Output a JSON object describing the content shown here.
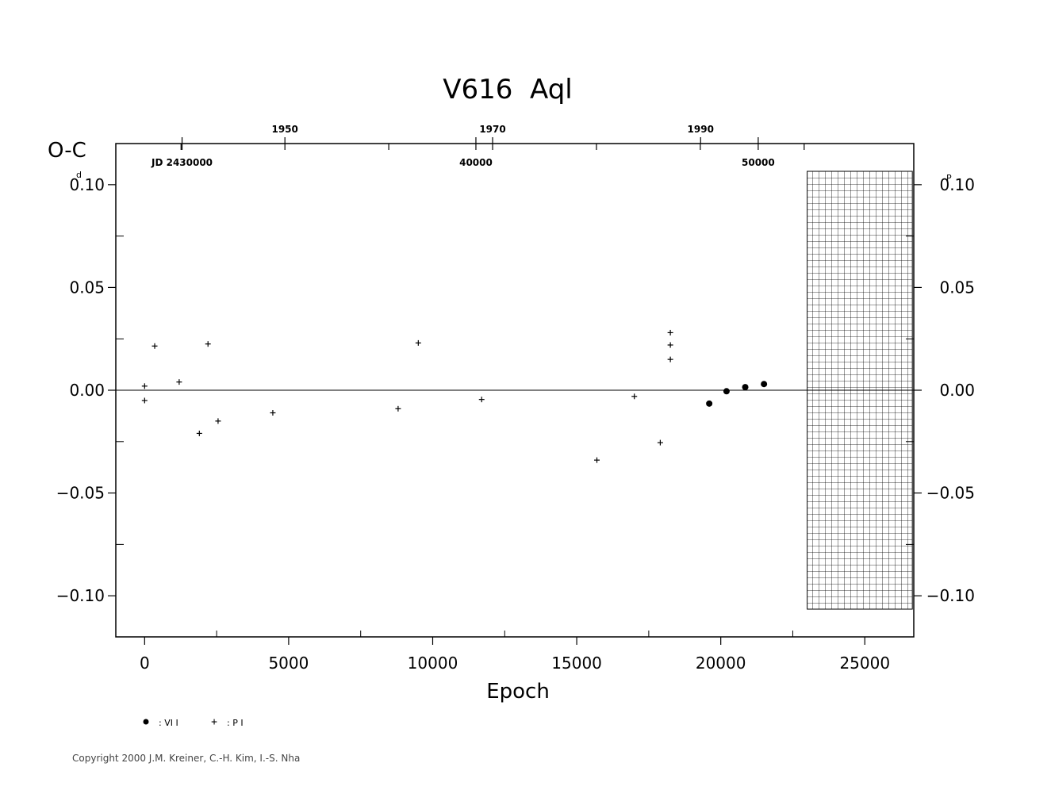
{
  "chart_data": {
    "type": "scatter",
    "title": "V616  Aql",
    "xlabel": "Epoch",
    "ylabel": "O-C",
    "y_unit_left": "d",
    "y_unit_right": "P",
    "xlim": [
      -1000,
      26700
    ],
    "ylim": [
      -0.12,
      0.12
    ],
    "x_ticks": [
      "0",
      "5000",
      "10000",
      "15000",
      "20000",
      "25000"
    ],
    "y_ticks": [
      "0.10",
      "0.05",
      "0.00",
      "−0.05",
      "−0.10"
    ],
    "top_year_ticks": [
      {
        "label": "1950",
        "epoch": 4870
      },
      {
        "label": "1970",
        "epoch": 12080
      },
      {
        "label": "1990",
        "epoch": 19300
      }
    ],
    "jd_ticks": [
      {
        "label": "JD  2430000",
        "epoch": 1300
      },
      {
        "label": "40000",
        "epoch": 11500
      },
      {
        "label": "50000",
        "epoch": 21300
      }
    ],
    "hatched_region_x": [
      23000,
      26650
    ],
    "series": [
      {
        "name": ": VI I",
        "marker": "dot",
        "x": [
          19600,
          20200,
          20850,
          21500
        ],
        "y": [
          -0.0065,
          -0.0005,
          0.0015,
          0.003
        ]
      },
      {
        "name": ": P I",
        "marker": "plus",
        "x": [
          0,
          0,
          350,
          1200,
          1900,
          2200,
          2550,
          4450,
          8800,
          9500,
          11700,
          15700,
          17000,
          17900,
          18250,
          18250,
          18250
        ],
        "y": [
          0.002,
          -0.005,
          0.0215,
          0.004,
          -0.021,
          0.0225,
          -0.015,
          -0.011,
          -0.009,
          0.023,
          -0.0045,
          -0.034,
          -0.003,
          -0.0255,
          0.028,
          0.022,
          0.015
        ]
      }
    ]
  },
  "copyright": "Copyright 2000 J.M. Kreiner, C.-H. Kim, I.-S. Nha"
}
